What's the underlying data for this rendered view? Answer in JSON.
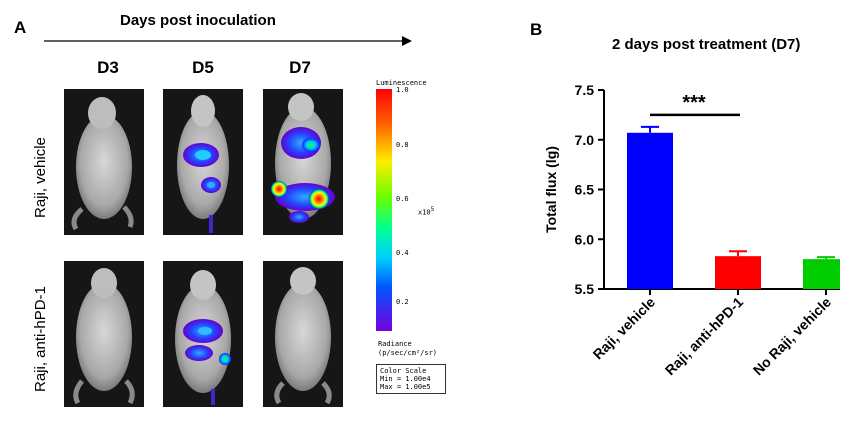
{
  "panel_a": {
    "letter": "A",
    "arrow_title": "Days post inoculation",
    "days": [
      "D3",
      "D5",
      "D7"
    ],
    "rows": [
      "Raji, vehicle",
      "Raji, anti-hPD-1"
    ],
    "colorbar": {
      "title": "Luminescence",
      "ticks": [
        "1.0",
        "0.8",
        "0.6",
        "0.4",
        "0.2"
      ],
      "multiplier": "x10",
      "exponent": "5",
      "radiance_label": "Radiance",
      "radiance_units": "(p/sec/cm²/sr)",
      "scale_title": "Color Scale",
      "scale_min": "Min = 1.00e4",
      "scale_max": "Max = 1.00e5"
    }
  },
  "panel_b": {
    "letter": "B"
  },
  "chart_data": {
    "type": "bar",
    "title": "2 days post treatment (D7)",
    "ylabel": "Total flux (lg)",
    "xlabel": "",
    "categories": [
      "Raji, vehicle",
      "Raji, anti-hPD-1",
      "No Raji, vehicle"
    ],
    "values": [
      7.07,
      5.83,
      5.8
    ],
    "errors": [
      0.06,
      0.05,
      0.02
    ],
    "colors": [
      "#0000ff",
      "#ff0000",
      "#00cc00"
    ],
    "ylim": [
      5.5,
      7.5
    ],
    "yticks": [
      "5.5",
      "6.0",
      "6.5",
      "7.0",
      "7.5"
    ],
    "ytick_values": [
      5.5,
      6.0,
      6.5,
      7.0,
      7.5
    ],
    "significance": {
      "label": "***",
      "between": [
        "Raji, vehicle",
        "Raji, anti-hPD-1"
      ]
    },
    "grid": false,
    "legend": "none"
  }
}
